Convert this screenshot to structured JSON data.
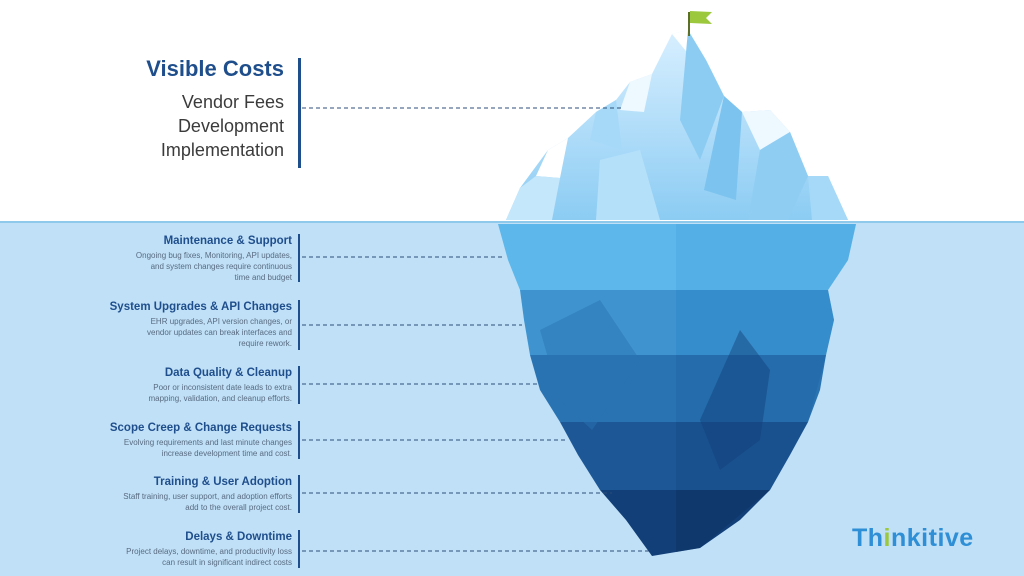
{
  "visible_costs": {
    "title": "Visible Costs",
    "items": [
      "Vendor Fees",
      "Development",
      "Implementation"
    ]
  },
  "hidden_costs": [
    {
      "title": "Maintenance & Support",
      "desc": [
        "Ongoing bug fixes, Monitoring, API updates,",
        "and system changes require continuous",
        "time and budget"
      ]
    },
    {
      "title": "System Upgrades & API Changes",
      "desc": [
        "EHR upgrades, API version changes, or",
        "vendor updates can break interfaces and",
        "require rework."
      ]
    },
    {
      "title": "Data Quality & Cleanup",
      "desc": [
        "Poor or inconsistent date leads to extra",
        "mapping, validation, and cleanup efforts."
      ]
    },
    {
      "title": "Scope Creep & Change Requests",
      "desc": [
        "Evolving requirements and last minute changes",
        "increase development time and cost."
      ]
    },
    {
      "title": "Training & User Adoption",
      "desc": [
        "Staff training, user support, and adoption efforts",
        "add to the overall project cost."
      ]
    },
    {
      "title": "Delays & Downtime",
      "desc": [
        "Project delays, downtime, and productivity loss",
        "can result in significant indirect costs"
      ]
    }
  ],
  "logo": {
    "part1": "Th",
    "accent": "i",
    "part2": "nkitive"
  },
  "colors": {
    "accent": "#1f4e8c",
    "sea": "#bfe0f7",
    "flag": "#9bc83d",
    "logo": "#2f8fd6"
  }
}
